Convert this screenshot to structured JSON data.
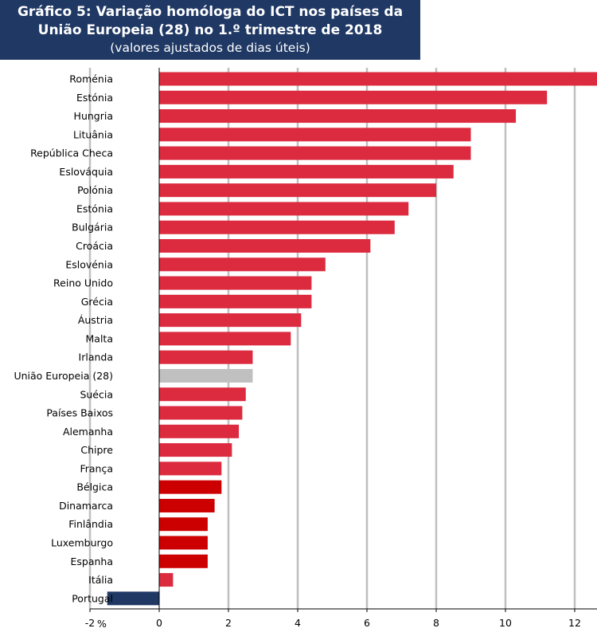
{
  "title": {
    "line1": "Gráfico 5: Variação homóloga do ICT nos países da",
    "line2": "União Europeia (28) no 1.º trimestre de 2018",
    "line3": "(valores ajustados de dias úteis)"
  },
  "chart_data": {
    "type": "bar",
    "orientation": "horizontal",
    "xunit": "%",
    "xlim": [
      -2,
      14
    ],
    "xticks": [
      -2,
      0,
      2,
      4,
      6,
      8,
      10,
      12,
      14
    ],
    "grid": true,
    "categories": [
      "Roménia",
      "Estónia",
      "Hungria",
      "Lituânia",
      "República Checa",
      "Eslováquia",
      "Polónia",
      "Estónia",
      "Bulgária",
      "Croácia",
      "Eslovénia",
      "Reino Unido",
      "Grécia",
      "Áustria",
      "Malta",
      "Irlanda",
      "União Europeia (28)",
      "Suécia",
      "Países Baixos",
      "Alemanha",
      "Chipre",
      "França",
      "Bélgica",
      "Dinamarca",
      "Finlândia",
      "Luxemburgo",
      "Espanha",
      "Itália",
      "Portugal"
    ],
    "values": [
      12.7,
      11.2,
      10.3,
      9.0,
      9.0,
      8.5,
      8.0,
      7.2,
      6.8,
      6.1,
      4.8,
      4.4,
      4.4,
      4.1,
      3.8,
      2.7,
      2.7,
      2.5,
      2.4,
      2.3,
      2.1,
      1.8,
      1.8,
      1.6,
      1.4,
      1.4,
      1.4,
      0.4,
      -1.5
    ],
    "bar_colors": [
      "#dc2a3f",
      "#dc2a3f",
      "#dc2a3f",
      "#dc2a3f",
      "#dc2a3f",
      "#dc2a3f",
      "#dc2a3f",
      "#dc2a3f",
      "#dc2a3f",
      "#dc2a3f",
      "#dc2a3f",
      "#dc2a3f",
      "#dc2a3f",
      "#dc2a3f",
      "#dc2a3f",
      "#dc2a3f",
      "#c0c0c0",
      "#dc2a3f",
      "#dc2a3f",
      "#dc2a3f",
      "#dc2a3f",
      "#dc2a3f",
      "#cc0000",
      "#cc0000",
      "#cc0000",
      "#cc0000",
      "#cc0000",
      "#dc2a3f",
      "#1f3864"
    ]
  }
}
